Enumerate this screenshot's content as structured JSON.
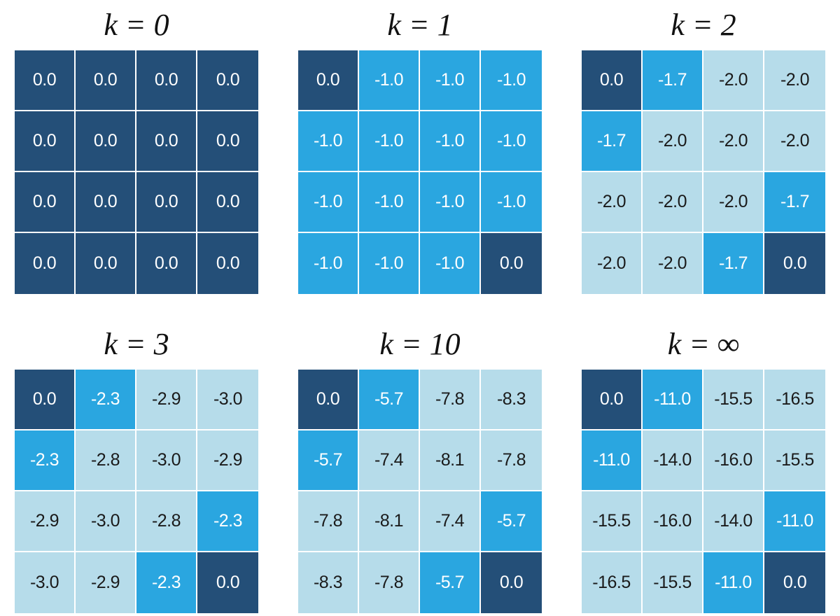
{
  "colors": {
    "terminal": "#244f78",
    "near": "#2aa6e0",
    "far": "#b6dcea",
    "text_light": "#ffffff",
    "text_dark": "#1a1a1a"
  },
  "panels": [
    {
      "title": "k = 0",
      "values": [
        [
          "0.0",
          "0.0",
          "0.0",
          "0.0"
        ],
        [
          "0.0",
          "0.0",
          "0.0",
          "0.0"
        ],
        [
          "0.0",
          "0.0",
          "0.0",
          "0.0"
        ],
        [
          "0.0",
          "0.0",
          "0.0",
          "0.0"
        ]
      ],
      "shades": [
        [
          "terminal",
          "terminal",
          "terminal",
          "terminal"
        ],
        [
          "terminal",
          "terminal",
          "terminal",
          "terminal"
        ],
        [
          "terminal",
          "terminal",
          "terminal",
          "terminal"
        ],
        [
          "terminal",
          "terminal",
          "terminal",
          "terminal"
        ]
      ]
    },
    {
      "title": "k = 1",
      "values": [
        [
          "0.0",
          "-1.0",
          "-1.0",
          "-1.0"
        ],
        [
          "-1.0",
          "-1.0",
          "-1.0",
          "-1.0"
        ],
        [
          "-1.0",
          "-1.0",
          "-1.0",
          "-1.0"
        ],
        [
          "-1.0",
          "-1.0",
          "-1.0",
          "0.0"
        ]
      ],
      "shades": [
        [
          "terminal",
          "near",
          "near",
          "near"
        ],
        [
          "near",
          "near",
          "near",
          "near"
        ],
        [
          "near",
          "near",
          "near",
          "near"
        ],
        [
          "near",
          "near",
          "near",
          "terminal"
        ]
      ]
    },
    {
      "title": "k = 2",
      "values": [
        [
          "0.0",
          "-1.7",
          "-2.0",
          "-2.0"
        ],
        [
          "-1.7",
          "-2.0",
          "-2.0",
          "-2.0"
        ],
        [
          "-2.0",
          "-2.0",
          "-2.0",
          "-1.7"
        ],
        [
          "-2.0",
          "-2.0",
          "-1.7",
          "0.0"
        ]
      ],
      "shades": [
        [
          "terminal",
          "near",
          "far",
          "far"
        ],
        [
          "near",
          "far",
          "far",
          "far"
        ],
        [
          "far",
          "far",
          "far",
          "near"
        ],
        [
          "far",
          "far",
          "near",
          "terminal"
        ]
      ]
    },
    {
      "title": "k = 3",
      "values": [
        [
          "0.0",
          "-2.3",
          "-2.9",
          "-3.0"
        ],
        [
          "-2.3",
          "-2.8",
          "-3.0",
          "-2.9"
        ],
        [
          "-2.9",
          "-3.0",
          "-2.8",
          "-2.3"
        ],
        [
          "-3.0",
          "-2.9",
          "-2.3",
          "0.0"
        ]
      ],
      "shades": [
        [
          "terminal",
          "near",
          "far",
          "far"
        ],
        [
          "near",
          "far",
          "far",
          "far"
        ],
        [
          "far",
          "far",
          "far",
          "near"
        ],
        [
          "far",
          "far",
          "near",
          "terminal"
        ]
      ]
    },
    {
      "title": "k = 10",
      "values": [
        [
          "0.0",
          "-5.7",
          "-7.8",
          "-8.3"
        ],
        [
          "-5.7",
          "-7.4",
          "-8.1",
          "-7.8"
        ],
        [
          "-7.8",
          "-8.1",
          "-7.4",
          "-5.7"
        ],
        [
          "-8.3",
          "-7.8",
          "-5.7",
          "0.0"
        ]
      ],
      "shades": [
        [
          "terminal",
          "near",
          "far",
          "far"
        ],
        [
          "near",
          "far",
          "far",
          "far"
        ],
        [
          "far",
          "far",
          "far",
          "near"
        ],
        [
          "far",
          "far",
          "near",
          "terminal"
        ]
      ]
    },
    {
      "title": "k = ∞",
      "values": [
        [
          "0.0",
          "-11.0",
          "-15.5",
          "-16.5"
        ],
        [
          "-11.0",
          "-14.0",
          "-16.0",
          "-15.5"
        ],
        [
          "-15.5",
          "-16.0",
          "-14.0",
          "-11.0"
        ],
        [
          "-16.5",
          "-15.5",
          "-11.0",
          "0.0"
        ]
      ],
      "shades": [
        [
          "terminal",
          "near",
          "far",
          "far"
        ],
        [
          "near",
          "far",
          "far",
          "far"
        ],
        [
          "far",
          "far",
          "far",
          "near"
        ],
        [
          "far",
          "far",
          "near",
          "terminal"
        ]
      ]
    }
  ]
}
